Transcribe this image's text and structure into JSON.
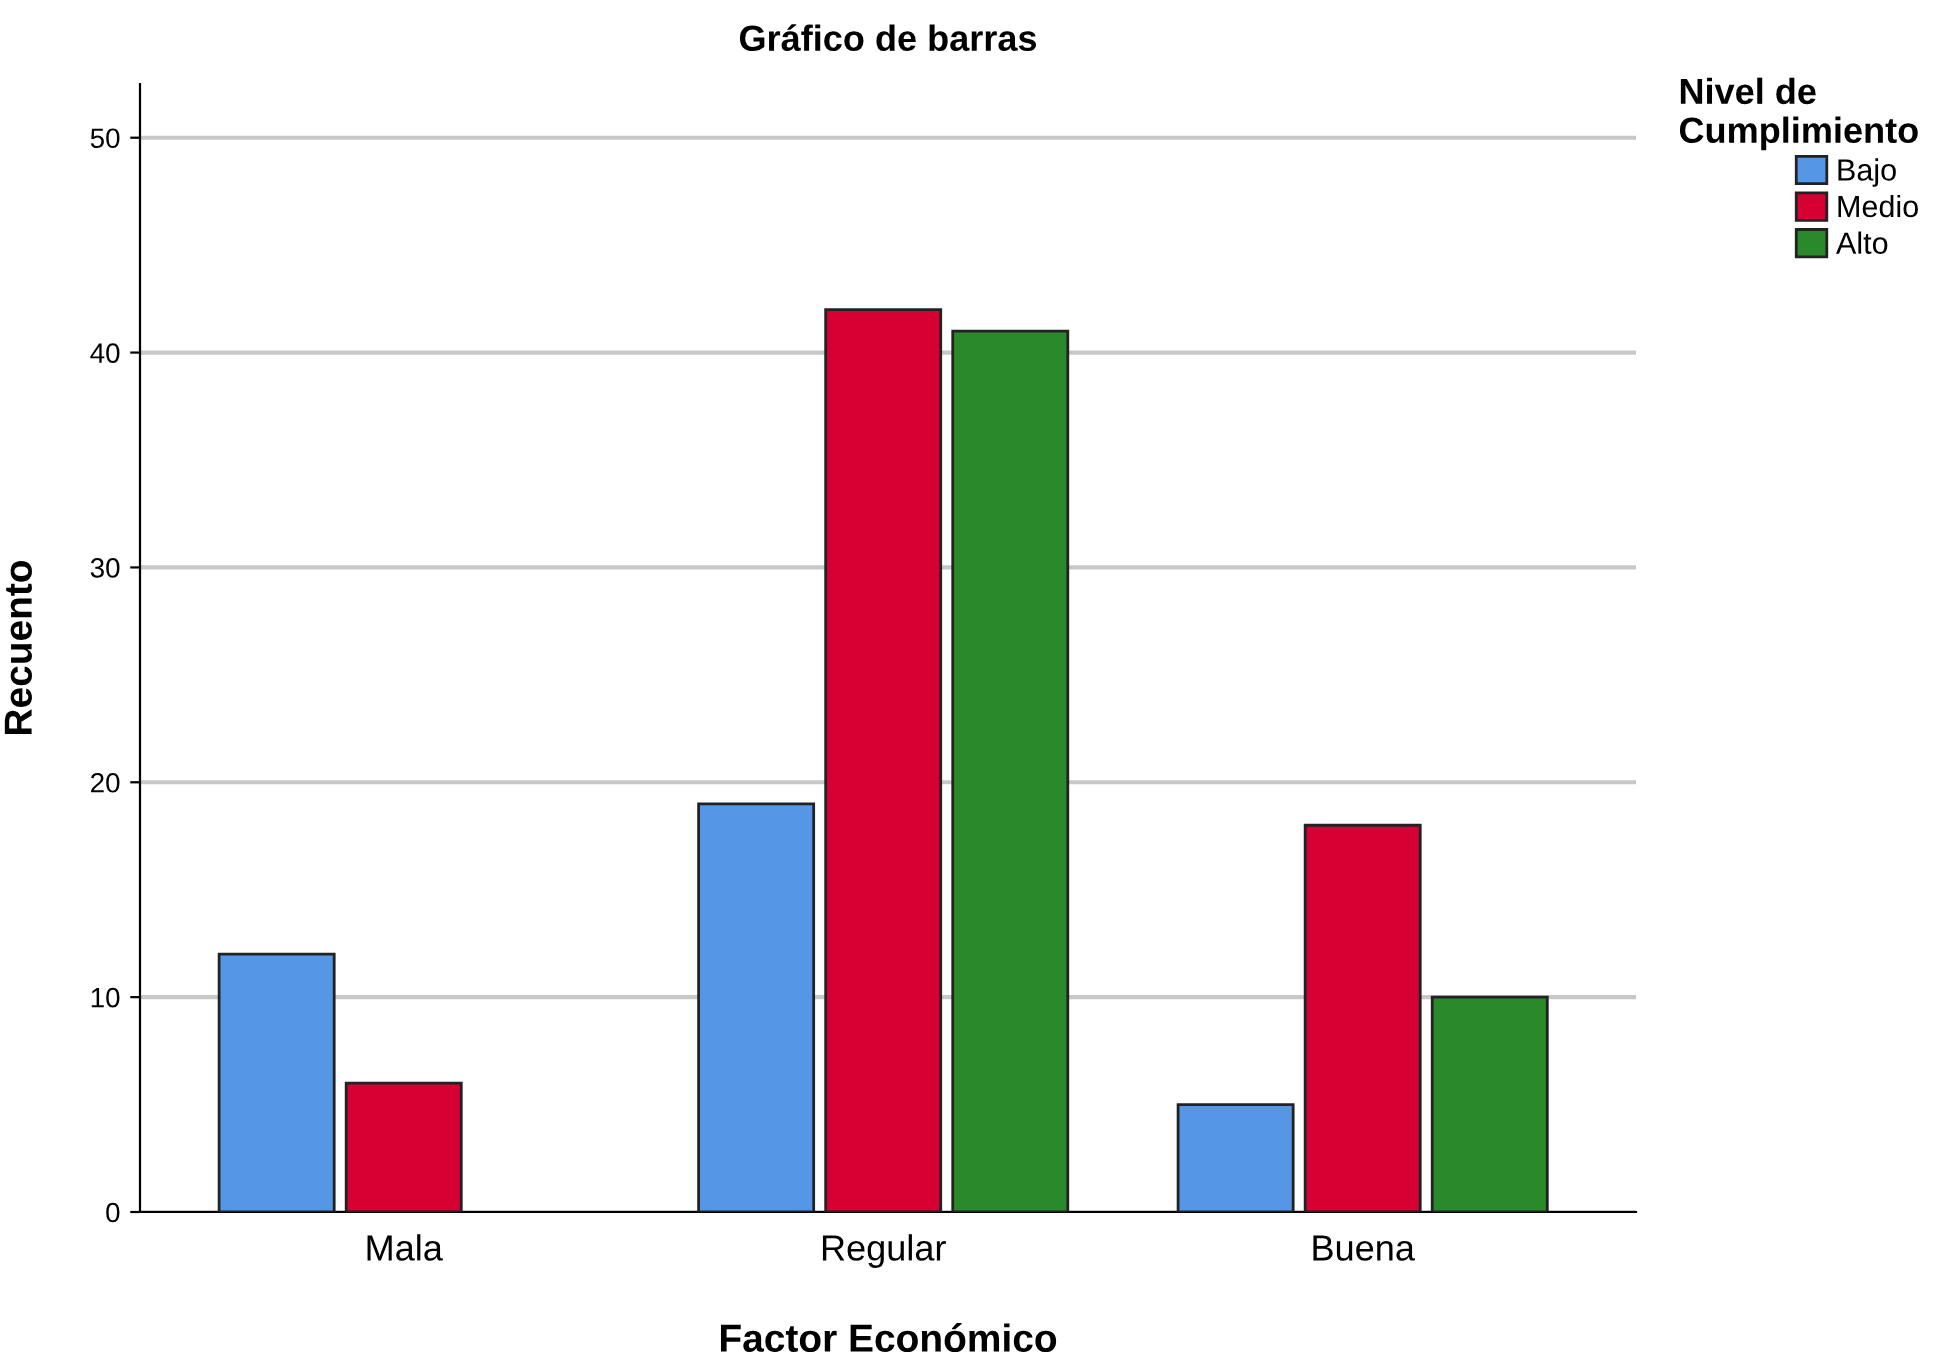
{
  "chart_data": {
    "type": "bar",
    "title": "Gráfico de barras",
    "xlabel": "Factor Económico",
    "ylabel": "Recuento",
    "legend_title": "Nivel de\nCumplimiento",
    "categories": [
      "Mala",
      "Regular",
      "Buena"
    ],
    "series": [
      {
        "name": "Bajo",
        "color": "#5596e6",
        "values": [
          12,
          19,
          5
        ]
      },
      {
        "name": "Medio",
        "color": "#d60032",
        "values": [
          6,
          42,
          18
        ]
      },
      {
        "name": "Alto",
        "color": "#2a8a2a",
        "values": [
          null,
          41,
          10
        ]
      }
    ],
    "ylim": [
      0,
      52.5
    ],
    "yticks": [
      0,
      10,
      20,
      30,
      40,
      50
    ],
    "grid": "y",
    "legend": "top right"
  }
}
